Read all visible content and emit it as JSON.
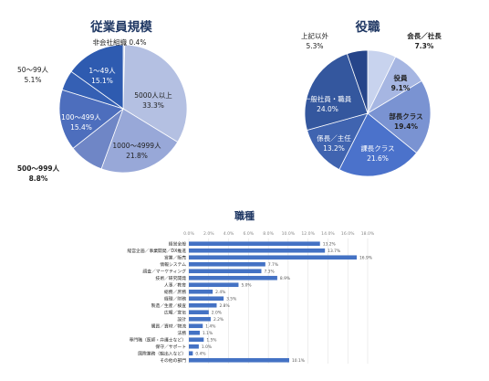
{
  "colors": {
    "navy": "#203864",
    "bar": "#4472C4",
    "grid": "#dddddd"
  },
  "chart_data": [
    {
      "type": "pie",
      "title": "従業員規模",
      "slices": [
        {
          "label": "非会社組織",
          "value": 0.4,
          "value_text": "0.4%",
          "color": "#c7cfe8"
        },
        {
          "label": "5000人以上",
          "value": 33.3,
          "value_text": "33.3%",
          "color": "#b4c0e2"
        },
        {
          "label": "1000～4999人",
          "value": 21.8,
          "value_text": "21.8%",
          "color": "#98a8d8"
        },
        {
          "label": "500～999人",
          "value": 8.8,
          "value_text": "8.8%",
          "color": "#6f86c6"
        },
        {
          "label": "100～499人",
          "value": 15.4,
          "value_text": "15.4%",
          "color": "#4d6ebd"
        },
        {
          "label": "50～99人",
          "value": 5.1,
          "value_text": "5.1%",
          "color": "#3560b4"
        },
        {
          "label": "1～49人",
          "value": 15.1,
          "value_text": "15.1%",
          "color": "#2e5bb0"
        }
      ]
    },
    {
      "type": "pie",
      "title": "役職",
      "slices": [
        {
          "label": "会長／社長",
          "value": 7.3,
          "value_text": "7.3%",
          "color": "#c8d3ee"
        },
        {
          "label": "役員",
          "value": 9.1,
          "value_text": "9.1%",
          "color": "#a6b6e2"
        },
        {
          "label": "部長クラス",
          "value": 19.4,
          "value_text": "19.4%",
          "color": "#7a93d2"
        },
        {
          "label": "課長クラス",
          "value": 21.6,
          "value_text": "21.6%",
          "color": "#4b72cb"
        },
        {
          "label": "係長／主任",
          "value": 13.2,
          "value_text": "13.2%",
          "color": "#4064b0"
        },
        {
          "label": "一般社員・職員",
          "value": 24.0,
          "value_text": "24.0%",
          "color": "#34579e"
        },
        {
          "label": "上記以外",
          "value": 5.3,
          "value_text": "5.3%",
          "color": "#26458a"
        }
      ]
    },
    {
      "type": "bar",
      "orientation": "horizontal",
      "title": "職種",
      "xlim": [
        0,
        18
      ],
      "ticks": [
        "0.0%",
        "2.0%",
        "4.0%",
        "6.0%",
        "8.0%",
        "10.0%",
        "12.0%",
        "14.0%",
        "16.0%",
        "18.0%"
      ],
      "categories": [
        "経営全般",
        "経営企画／事業開発／DX推進",
        "営業／販売",
        "情報システム",
        "調査／マーケティング",
        "技術／研究開発",
        "人事／教育",
        "総務／庶務",
        "経理／財務",
        "製造／生産／検査",
        "広報／宣伝",
        "設計",
        "購買／資材／物流",
        "法務",
        "専門職（医師・弁護士など）",
        "保守／サポート",
        "国際業務（輸出入など）",
        "その他の部門"
      ],
      "values": [
        13.2,
        13.7,
        16.9,
        7.7,
        7.3,
        8.9,
        5.0,
        2.4,
        3.5,
        2.8,
        2.0,
        2.2,
        1.4,
        1.1,
        1.5,
        1.0,
        0.4,
        10.1
      ],
      "value_labels": [
        "13.2%",
        "13.7%",
        "16.9%",
        "7.7%",
        "7.3%",
        "8.9%",
        "5.0%",
        "2.4%",
        "3.5%",
        "2.8%",
        "2.0%",
        "2.2%",
        "1.4%",
        "1.1%",
        "1.5%",
        "1.0%",
        "0.4%",
        "10.1%"
      ]
    }
  ]
}
